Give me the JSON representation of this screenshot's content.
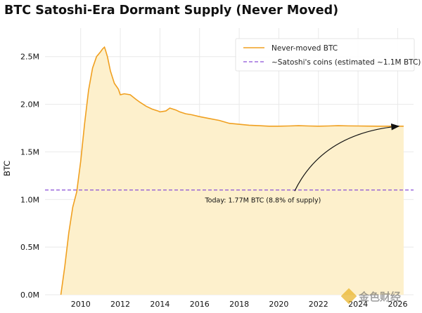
{
  "chart_data": {
    "type": "area",
    "title": "BTC Satoshi-Era Dormant Supply (Never Moved)",
    "xlabel": "",
    "ylabel": "BTC",
    "xlim": [
      2008.2,
      2026.8
    ],
    "ylim": [
      0,
      2800000
    ],
    "x_ticks": [
      2010,
      2012,
      2014,
      2016,
      2018,
      2020,
      2022,
      2024,
      2026
    ],
    "y_ticks": [
      {
        "value": 0,
        "label": "0.0M"
      },
      {
        "value": 500000,
        "label": "0.5M"
      },
      {
        "value": 1000000,
        "label": "1.0M"
      },
      {
        "value": 1500000,
        "label": "1.5M"
      },
      {
        "value": 2000000,
        "label": "2.0M"
      },
      {
        "value": 2500000,
        "label": "2.5M"
      }
    ],
    "grid": true,
    "legend_position": "top-right",
    "series": [
      {
        "name": "Never-moved BTC",
        "kind": "area-line",
        "color": "#F0A020",
        "fill": "#FDF0CC",
        "x": [
          2009.0,
          2009.2,
          2009.4,
          2009.6,
          2009.8,
          2010.0,
          2010.2,
          2010.4,
          2010.6,
          2010.8,
          2011.0,
          2011.1,
          2011.2,
          2011.25,
          2011.35,
          2011.5,
          2011.7,
          2011.9,
          2012.0,
          2012.2,
          2012.5,
          2012.8,
          2013.0,
          2013.3,
          2013.6,
          2013.9,
          2014.0,
          2014.3,
          2014.5,
          2014.8,
          2015.0,
          2015.3,
          2015.6,
          2016.0,
          2016.5,
          2017.0,
          2017.5,
          2018.0,
          2018.5,
          2019.0,
          2019.5,
          2020.0,
          2020.5,
          2021.0,
          2021.5,
          2022.0,
          2022.5,
          2023.0,
          2023.5,
          2024.0,
          2024.5,
          2025.0,
          2025.5,
          2026.0,
          2026.3
        ],
        "y": [
          0,
          300000,
          650000,
          920000,
          1080000,
          1400000,
          1800000,
          2150000,
          2380000,
          2500000,
          2550000,
          2580000,
          2600000,
          2570000,
          2500000,
          2350000,
          2220000,
          2160000,
          2100000,
          2110000,
          2100000,
          2050000,
          2020000,
          1980000,
          1950000,
          1930000,
          1920000,
          1930000,
          1960000,
          1940000,
          1920000,
          1900000,
          1890000,
          1870000,
          1850000,
          1830000,
          1800000,
          1790000,
          1780000,
          1775000,
          1770000,
          1770000,
          1772000,
          1775000,
          1772000,
          1770000,
          1772000,
          1775000,
          1773000,
          1772000,
          1771000,
          1770000,
          1770000,
          1770000,
          1770000
        ]
      },
      {
        "name": "~Satoshi's coins (estimated ~1.1M BTC)",
        "kind": "hline",
        "color": "#8A4FD6",
        "value": 1100000
      }
    ],
    "annotations": [
      {
        "text": "Today: 1.77M BTC  (8.8% of supply)",
        "x": 2019.2,
        "y": 1000000,
        "arrow_to": {
          "x": 2026.2,
          "y": 1770000
        }
      }
    ]
  },
  "watermark": {
    "text": "金色财经"
  }
}
